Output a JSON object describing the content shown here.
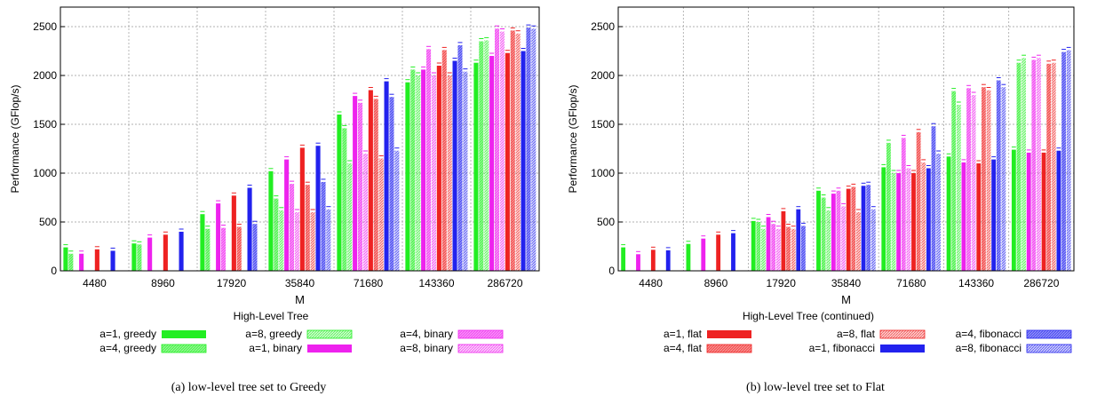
{
  "colors": {
    "greedy": "#22ee22",
    "binary": "#ee22ee",
    "flat": "#ee2222",
    "fibonacci": "#2222ee"
  },
  "chart_data": [
    {
      "type": "bar",
      "caption": "(a) low-level tree set to Greedy",
      "xlabel": "M",
      "ylabel": "Performance (GFlop/s)",
      "ylim": [
        0,
        2700
      ],
      "yticks": [
        0,
        500,
        1000,
        1500,
        2000,
        2500
      ],
      "grid": true,
      "categories": [
        "4480",
        "8960",
        "17920",
        "35840",
        "71680",
        "143360",
        "286720"
      ],
      "legend_title": "High-Level Tree",
      "legend_placement": "bottom",
      "series": [
        {
          "name": "a=1, greedy",
          "color": "greedy",
          "pattern": "solid",
          "values": [
            240,
            280,
            580,
            1020,
            1600,
            1930,
            2130
          ]
        },
        {
          "name": "a=4, greedy",
          "color": "greedy",
          "pattern": "dense",
          "values": [
            175,
            270,
            430,
            740,
            1460,
            2060,
            2350
          ]
        },
        {
          "name": "a=8, greedy",
          "color": "greedy",
          "pattern": "light",
          "values": [
            0,
            0,
            0,
            620,
            1100,
            2000,
            2360
          ]
        },
        {
          "name": "a=1, binary",
          "color": "binary",
          "pattern": "solid",
          "values": [
            175,
            340,
            690,
            1140,
            1790,
            2060,
            2200
          ]
        },
        {
          "name": "a=4, binary",
          "color": "binary",
          "pattern": "dense",
          "values": [
            0,
            0,
            440,
            890,
            1720,
            2270,
            2480
          ]
        },
        {
          "name": "a=8, binary",
          "color": "binary",
          "pattern": "light",
          "values": [
            0,
            0,
            0,
            600,
            1200,
            2000,
            2450
          ]
        },
        {
          "name": "a=1, flat",
          "color": "flat",
          "pattern": "solid",
          "values": [
            220,
            370,
            770,
            1260,
            1850,
            2100,
            2230
          ]
        },
        {
          "name": "a=4, flat",
          "color": "flat",
          "pattern": "dense",
          "values": [
            0,
            0,
            450,
            880,
            1760,
            2260,
            2460
          ]
        },
        {
          "name": "a=8, flat",
          "color": "flat",
          "pattern": "light",
          "values": [
            0,
            0,
            0,
            600,
            1150,
            2000,
            2430
          ]
        },
        {
          "name": "a=1, fibonacci",
          "color": "fibonacci",
          "pattern": "solid",
          "values": [
            205,
            400,
            850,
            1280,
            1940,
            2150,
            2250
          ]
        },
        {
          "name": "a=4, fibonacci",
          "color": "fibonacci",
          "pattern": "dense",
          "values": [
            0,
            0,
            480,
            910,
            1780,
            2310,
            2490
          ]
        },
        {
          "name": "a=8, fibonacci",
          "color": "fibonacci",
          "pattern": "light",
          "values": [
            0,
            0,
            0,
            630,
            1230,
            2040,
            2480
          ]
        }
      ]
    },
    {
      "type": "bar",
      "caption": "(b) low-level tree set to Flat",
      "xlabel": "M",
      "ylabel": "Performance (GFlop/s)",
      "ylim": [
        0,
        2700
      ],
      "yticks": [
        0,
        500,
        1000,
        1500,
        2000,
        2500
      ],
      "grid": true,
      "categories": [
        "4480",
        "8960",
        "17920",
        "35840",
        "71680",
        "143360",
        "286720"
      ],
      "legend_title": "High-Level Tree (continued)",
      "legend_placement": "bottom",
      "series": [
        {
          "name": "a=1, greedy",
          "color": "greedy",
          "pattern": "solid",
          "values": [
            240,
            275,
            510,
            820,
            1060,
            1170,
            1240
          ]
        },
        {
          "name": "a=4, greedy",
          "color": "greedy",
          "pattern": "dense",
          "values": [
            0,
            0,
            500,
            750,
            1310,
            1840,
            2130
          ]
        },
        {
          "name": "a=8, greedy",
          "color": "greedy",
          "pattern": "light",
          "values": [
            0,
            0,
            430,
            620,
            1000,
            1700,
            2180
          ]
        },
        {
          "name": "a=1, binary",
          "color": "binary",
          "pattern": "solid",
          "values": [
            170,
            330,
            550,
            790,
            1000,
            1110,
            1210
          ]
        },
        {
          "name": "a=4, binary",
          "color": "binary",
          "pattern": "dense",
          "values": [
            0,
            0,
            480,
            820,
            1360,
            1870,
            2160
          ]
        },
        {
          "name": "a=8, binary",
          "color": "binary",
          "pattern": "light",
          "values": [
            0,
            0,
            430,
            660,
            1050,
            1800,
            2180
          ]
        },
        {
          "name": "a=1, flat",
          "color": "flat",
          "pattern": "solid",
          "values": [
            215,
            370,
            610,
            840,
            1000,
            1100,
            1210
          ]
        },
        {
          "name": "a=4, flat",
          "color": "flat",
          "pattern": "dense",
          "values": [
            0,
            0,
            450,
            860,
            1420,
            1880,
            2120
          ]
        },
        {
          "name": "a=8, flat",
          "color": "flat",
          "pattern": "light",
          "values": [
            0,
            0,
            430,
            600,
            1110,
            1850,
            2130
          ]
        },
        {
          "name": "a=1, fibonacci",
          "color": "fibonacci",
          "pattern": "solid",
          "values": [
            210,
            385,
            630,
            870,
            1050,
            1140,
            1230
          ]
        },
        {
          "name": "a=4, fibonacci",
          "color": "fibonacci",
          "pattern": "dense",
          "values": [
            0,
            0,
            460,
            880,
            1480,
            1950,
            2240
          ]
        },
        {
          "name": "a=8, fibonacci",
          "color": "fibonacci",
          "pattern": "light",
          "values": [
            0,
            0,
            0,
            630,
            1200,
            1880,
            2260
          ]
        }
      ]
    }
  ]
}
